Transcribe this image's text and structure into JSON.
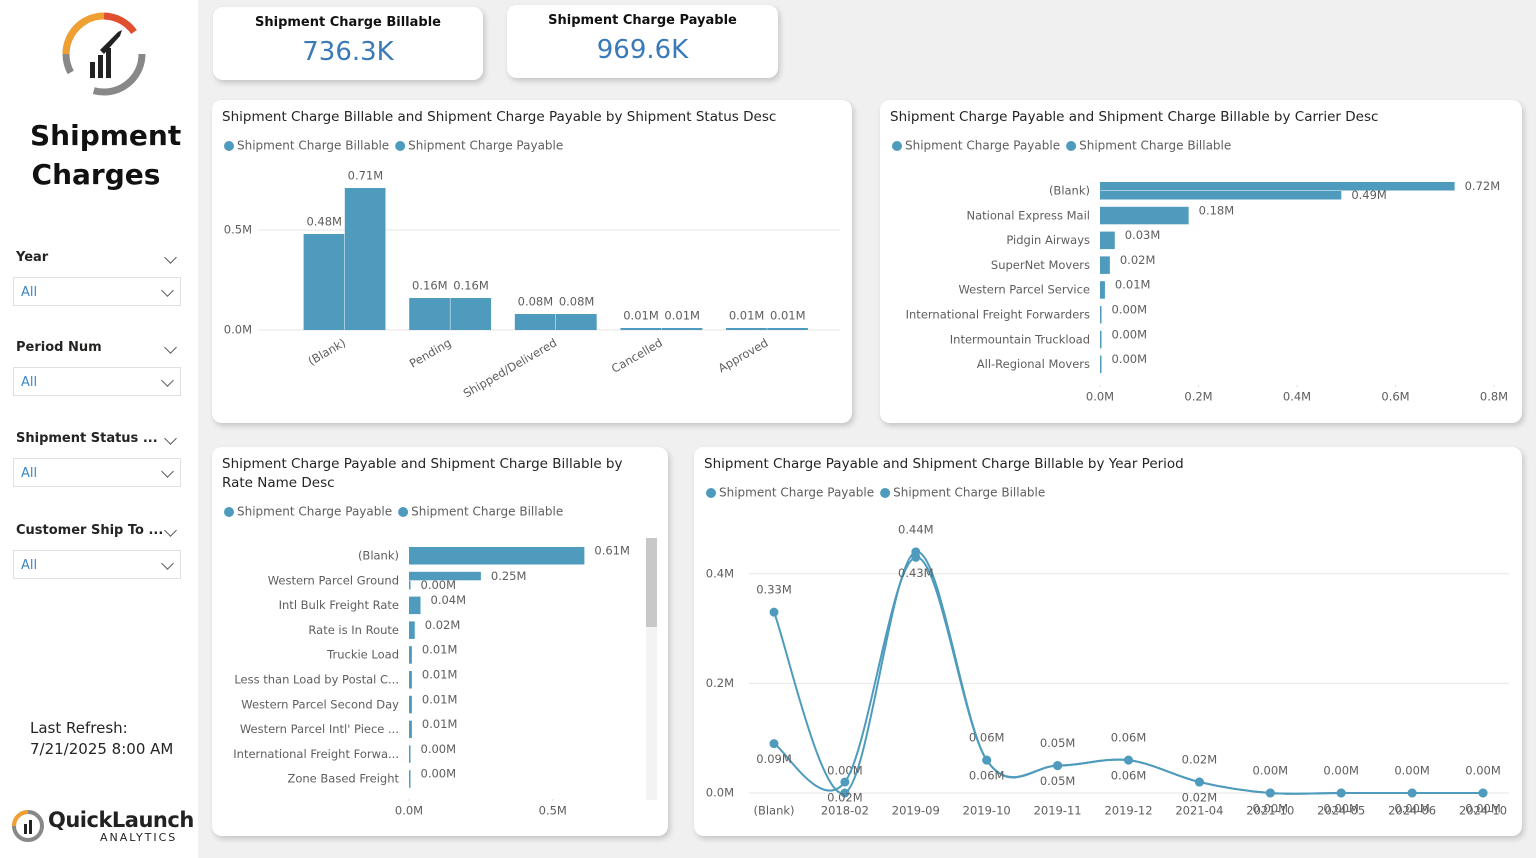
{
  "sidebar": {
    "title": "Shipment Charges",
    "filters": [
      {
        "label": "Year",
        "value": "All"
      },
      {
        "label": "Period Num",
        "value": "All"
      },
      {
        "label": "Shipment Status ...",
        "value": "All"
      },
      {
        "label": "Customer Ship To ...",
        "value": "All"
      }
    ],
    "refresh_label": "Last Refresh:",
    "refresh_value": "7/21/2025 8:00 AM",
    "brand": "QuickLaunch",
    "brand_sub": "ANALYTICS"
  },
  "kpis": [
    {
      "label": "Shipment Charge Billable",
      "value": "736.3K"
    },
    {
      "label": "Shipment Charge Payable",
      "value": "969.6K"
    }
  ],
  "chart_data": [
    {
      "type": "bar",
      "title": "Shipment Charge Billable and Shipment Charge Payable by Shipment Status Desc",
      "categories": [
        "(Blank)",
        "Pending",
        "Shipped/Delivered",
        "Cancelled",
        "Approved"
      ],
      "series": [
        {
          "name": "Shipment Charge Billable",
          "color": "#4e9bbd",
          "values": [
            0.48,
            0.16,
            0.08,
            0.01,
            0.01
          ],
          "value_labels": [
            "0.48M",
            "0.16M",
            "0.08M",
            "0.01M",
            "0.01M"
          ]
        },
        {
          "name": "Shipment Charge Payable",
          "color": "#4e9bbd",
          "values": [
            0.71,
            0.16,
            0.08,
            0.01,
            0.01
          ],
          "value_labels": [
            "0.71M",
            "0.16M",
            "0.08M",
            "0.01M",
            "0.01M"
          ]
        }
      ],
      "ylim": [
        0,
        0.8
      ],
      "yticks": [
        {
          "value": 0,
          "label": "0.0M"
        },
        {
          "value": 0.5,
          "label": "0.5M"
        }
      ],
      "grid": true
    },
    {
      "type": "hbar",
      "title": "Shipment Charge Payable and Shipment Charge Billable by Carrier Desc",
      "categories": [
        "(Blank)",
        "National Express Mail",
        "Pidgin Airways",
        "SuperNet Movers",
        "Western Parcel Service",
        "International Freight Forwarders",
        "Intermountain Truckload",
        "All-Regional Movers"
      ],
      "series": [
        {
          "name": "Shipment Charge Payable",
          "color": "#4e9bbd",
          "values": [
            0.72,
            0.18,
            0.03,
            0.02,
            0.01,
            0.0,
            0.0,
            0.0
          ],
          "value_labels": [
            "0.72M",
            "0.18M",
            "0.03M",
            "0.02M",
            "0.01M",
            "0.00M",
            "0.00M",
            "0.00M"
          ]
        },
        {
          "name": "Shipment Charge Billable",
          "color": "#4e9bbd",
          "values": [
            0.49,
            null,
            null,
            null,
            null,
            null,
            null,
            null
          ],
          "value_labels": [
            "0.49M",
            null,
            null,
            null,
            null,
            null,
            null,
            null
          ]
        }
      ],
      "xlim": [
        0,
        0.8
      ],
      "xticks": [
        {
          "value": 0,
          "label": "0.0M"
        },
        {
          "value": 0.2,
          "label": "0.2M"
        },
        {
          "value": 0.4,
          "label": "0.4M"
        },
        {
          "value": 0.6,
          "label": "0.6M"
        },
        {
          "value": 0.8,
          "label": "0.8M"
        }
      ],
      "grid": false
    },
    {
      "type": "hbar",
      "title": "Shipment Charge Payable and Shipment Charge Billable by Rate Name Desc",
      "categories": [
        "(Blank)",
        "Western Parcel Ground",
        "Intl Bulk Freight Rate",
        "Rate is In Route",
        "Truckie Load",
        "Less than Load by Postal C...",
        "Western Parcel Second Day",
        "Western Parcel Intl' Piece ...",
        "International Freight Forwa...",
        "Zone Based Freight"
      ],
      "series": [
        {
          "name": "Shipment Charge Payable",
          "color": "#4e9bbd",
          "values": [
            0.61,
            0.25,
            0.04,
            0.02,
            0.01,
            0.01,
            0.01,
            0.01,
            0.0,
            0.0
          ],
          "value_labels": [
            "0.61M",
            "0.25M",
            "0.04M",
            "0.02M",
            "0.01M",
            "0.01M",
            "0.01M",
            "0.01M",
            "0.00M",
            "0.00M"
          ]
        },
        {
          "name": "Shipment Charge Billable",
          "color": "#4e9bbd",
          "values": [
            null,
            0.0,
            null,
            null,
            null,
            null,
            null,
            null,
            null,
            null
          ],
          "value_labels": [
            null,
            "0.00M",
            null,
            null,
            null,
            null,
            null,
            null,
            null,
            null
          ]
        }
      ],
      "xlim": [
        0,
        0.8
      ],
      "xticks": [
        {
          "value": 0,
          "label": "0.0M"
        },
        {
          "value": 0.5,
          "label": "0.5M"
        }
      ],
      "grid": false
    },
    {
      "type": "line",
      "title": "Shipment Charge Payable and Shipment Charge Billable by Year Period",
      "categories": [
        "(Blank)",
        "2018-02",
        "2019-09",
        "2019-10",
        "2019-11",
        "2019-12",
        "2021-04",
        "2021-10",
        "2024-05",
        "2024-06",
        "2024-10"
      ],
      "series": [
        {
          "name": "Shipment Charge Payable",
          "color": "#4e9bbd",
          "values": [
            0.33,
            0.0,
            0.44,
            0.06,
            0.05,
            0.06,
            0.02,
            0.0,
            0.0,
            0.0,
            0.0
          ],
          "value_labels": [
            "0.33M",
            "0.00M",
            "0.44M",
            "0.06M",
            "0.05M",
            "0.06M",
            "0.02M",
            "0.00M",
            "0.00M",
            "0.00M",
            "0.00M"
          ]
        },
        {
          "name": "Shipment Charge Billable",
          "color": "#4e9bbd",
          "values": [
            0.09,
            0.02,
            0.43,
            0.06,
            0.05,
            0.06,
            0.02,
            0.0,
            0.0,
            0.0,
            0.0
          ],
          "value_labels": [
            "0.09M",
            "0.02M",
            "0.43M",
            "0.06M",
            "0.05M",
            "0.06M",
            "0.02M",
            "0.00M",
            "0.00M",
            "0.00M",
            "0.00M"
          ]
        }
      ],
      "ylim": [
        0,
        0.5
      ],
      "yticks": [
        {
          "value": 0,
          "label": "0.0M"
        },
        {
          "value": 0.2,
          "label": "0.2M"
        },
        {
          "value": 0.4,
          "label": "0.4M"
        }
      ],
      "grid": true
    }
  ]
}
